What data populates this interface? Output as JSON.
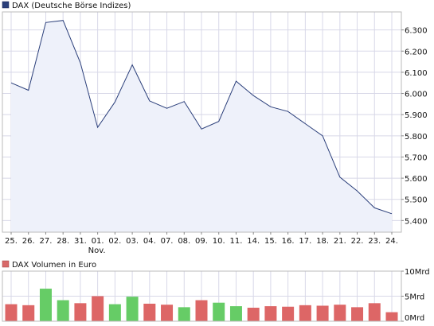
{
  "colors": {
    "line": "#2b3f7a",
    "area": "#eef1fa",
    "legend_price": "#2b3f7a",
    "legend_volume": "#d86a6a",
    "vol_up": "#66cc66",
    "vol_down": "#dd6666",
    "grid": "#d8d8e8",
    "axis": "#888888"
  },
  "chart_data": [
    {
      "type": "area",
      "title": "",
      "legend": "DAX (Deutsche Börse Indizes)",
      "x_ticks": [
        "25.",
        "26.",
        "27.",
        "28.",
        "31.",
        "01.",
        "02.",
        "03.",
        "04.",
        "07.",
        "08.",
        "09.",
        "10.",
        "11.",
        "14.",
        "15.",
        "16.",
        "17.",
        "18.",
        "21.",
        "22.",
        "23.",
        "24."
      ],
      "x_sub_label": {
        "index": 5,
        "text": "Nov."
      },
      "values": [
        6050,
        6015,
        6335,
        6345,
        6145,
        5840,
        5960,
        6135,
        5965,
        5930,
        5962,
        5832,
        5868,
        6058,
        5990,
        5937,
        5915,
        5857,
        5800,
        5605,
        5540,
        5460,
        5432
      ],
      "y_ticks": [
        5400,
        5500,
        5600,
        5700,
        5800,
        5900,
        6000,
        6100,
        6200,
        6300
      ],
      "y_tick_labels": [
        "5.400",
        "5.500",
        "5.600",
        "5.700",
        "5.800",
        "5.900",
        "6.000",
        "6.100",
        "6.200",
        "6.300"
      ],
      "ylim": [
        5345,
        6385
      ],
      "grid": true,
      "legend_position": "top-left"
    },
    {
      "type": "bar",
      "title": "",
      "legend": "DAX Volumen in Euro",
      "categories": [
        "25.",
        "26.",
        "27.",
        "28.",
        "31.",
        "01.",
        "02.",
        "03.",
        "04.",
        "07.",
        "08.",
        "09.",
        "10.",
        "11.",
        "14.",
        "15.",
        "16.",
        "17.",
        "18.",
        "21.",
        "22.",
        "23.",
        "24."
      ],
      "values": [
        3.4,
        3.2,
        6.5,
        4.2,
        3.6,
        5.0,
        3.4,
        4.9,
        3.5,
        3.3,
        2.8,
        4.2,
        3.7,
        3.0,
        2.7,
        3.0,
        2.9,
        3.2,
        3.1,
        3.3,
        2.8,
        3.6,
        1.8
      ],
      "direction": [
        "down",
        "down",
        "up",
        "up",
        "down",
        "down",
        "up",
        "up",
        "down",
        "down",
        "up",
        "down",
        "up",
        "up",
        "down",
        "down",
        "down",
        "down",
        "down",
        "down",
        "down",
        "down",
        "down"
      ],
      "y_tick_labels": [
        "0Mrd",
        "5Mrd",
        "10Mrd"
      ],
      "y_ticks": [
        0,
        5,
        10
      ],
      "ylim": [
        0,
        10
      ],
      "legend_position": "top-left"
    }
  ]
}
